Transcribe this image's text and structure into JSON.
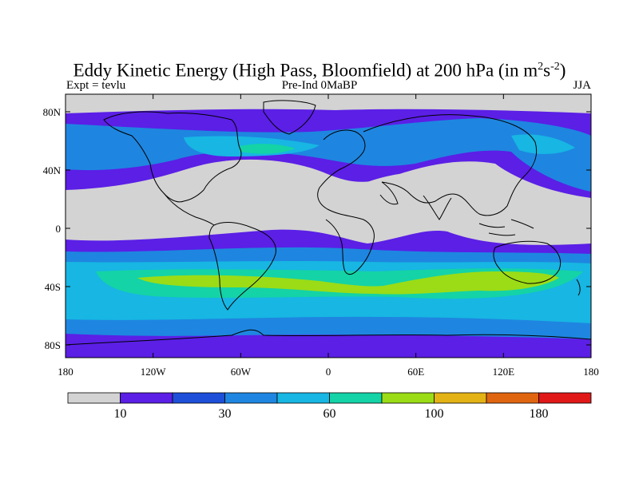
{
  "title": {
    "main": "Eddy Kinetic Energy (High Pass, Bloomfield) at 200 hPa (in m",
    "sup1": "2",
    "mid": "s",
    "sup2": "-2",
    "end": ")"
  },
  "subtitle": {
    "left": "Expt = tevlu",
    "center": "Pre-Ind 0MaBP",
    "right": "JJA"
  },
  "axes": {
    "x_ticks": [
      "180",
      "120W",
      "60W",
      "0",
      "60E",
      "120E",
      "180"
    ],
    "y_ticks": [
      "80N",
      "40N",
      "0",
      "40S",
      "80S"
    ]
  },
  "colorbar": {
    "colors": [
      "#d3d3d3",
      "#5b1fe6",
      "#1d4fd8",
      "#1e86e0",
      "#17b6e3",
      "#14d3a6",
      "#9bdc16",
      "#e3b215",
      "#e06510",
      "#e01818"
    ],
    "labels": [
      {
        "text": "10",
        "boundary": 1
      },
      {
        "text": "30",
        "boundary": 3
      },
      {
        "text": "60",
        "boundary": 5
      },
      {
        "text": "100",
        "boundary": 7
      },
      {
        "text": "180",
        "boundary": 9
      }
    ]
  }
}
